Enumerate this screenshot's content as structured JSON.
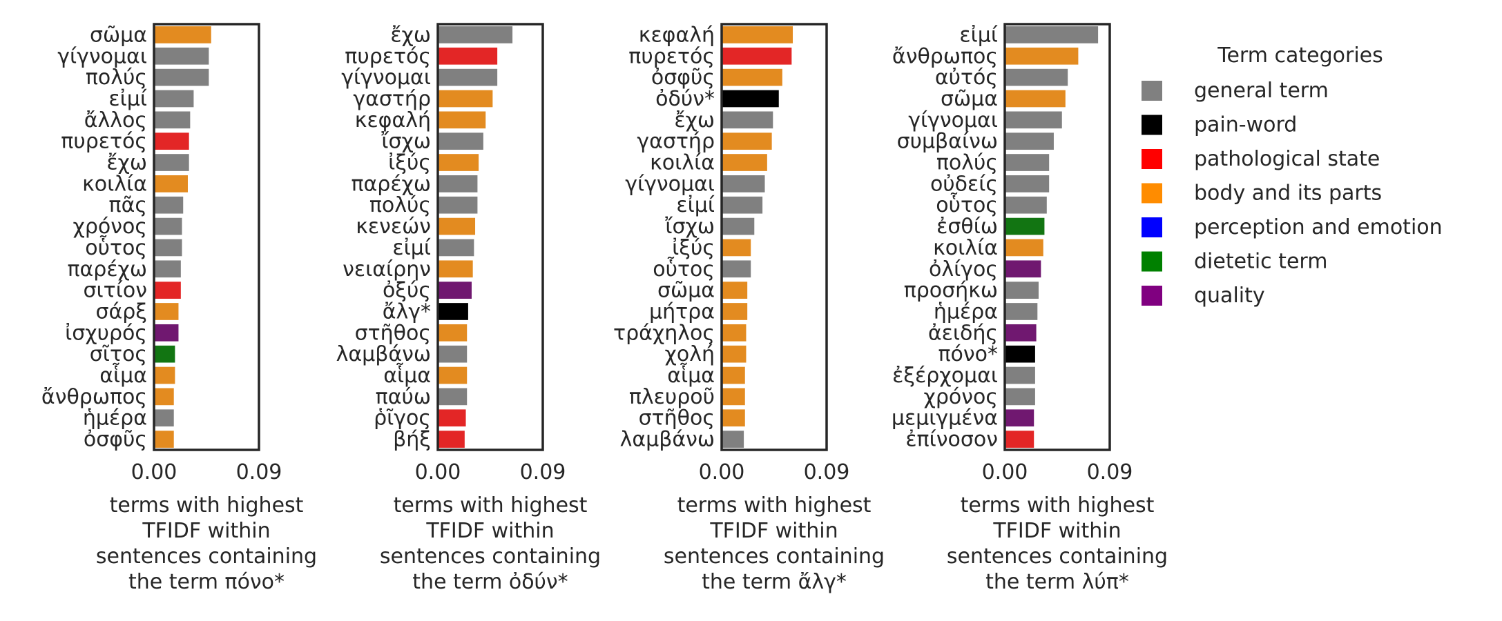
{
  "legend": {
    "title": "Term categories",
    "items": [
      {
        "label": "general term",
        "color": "#808080"
      },
      {
        "label": "pain-word",
        "color": "#000000"
      },
      {
        "label": "pathological state",
        "color": "#ff0000"
      },
      {
        "label": "body and its parts",
        "color": "#ff8c00"
      },
      {
        "label": "perception and emotion",
        "color": "#0000ff"
      },
      {
        "label": "dietetic term",
        "color": "#008000"
      },
      {
        "label": "quality",
        "color": "#800080"
      }
    ]
  },
  "bar_colors": {
    "general term": "#808080",
    "pain-word": "#000000",
    "pathological state": "#e32626",
    "body and its parts": "#e38b20",
    "perception and emotion": "#0000ff",
    "dietetic term": "#127512",
    "quality": "#701870"
  },
  "chart_data": [
    {
      "type": "bar",
      "orientation": "horizontal",
      "xlabel": "terms with highest\nTFIDF within\nsentences containing\nthe term πόνο*",
      "xlim": [
        0,
        0.09
      ],
      "xticks": [
        "0.00",
        "0.09"
      ],
      "categories": [
        "σῶμα",
        "γίγνομαι",
        "πολύς",
        "εἰμί",
        "ἄλλος",
        "πυρετός",
        "ἔχω",
        "κοιλία",
        "πᾶς",
        "χρόνος",
        "οὗτος",
        "παρέχω",
        "σιτίον",
        "σάρξ",
        "ἰσχυρός",
        "σῖτος",
        "αἷμα",
        "ἄνθρωπος",
        "ἡμέρα",
        "ὀσφῦς"
      ],
      "values": [
        0.049,
        0.047,
        0.047,
        0.034,
        0.031,
        0.03,
        0.03,
        0.029,
        0.025,
        0.024,
        0.024,
        0.023,
        0.023,
        0.021,
        0.021,
        0.018,
        0.018,
        0.017,
        0.017,
        0.017
      ],
      "term_categories": [
        "body and its parts",
        "general term",
        "general term",
        "general term",
        "general term",
        "pathological state",
        "general term",
        "body and its parts",
        "general term",
        "general term",
        "general term",
        "general term",
        "pathological state",
        "body and its parts",
        "quality",
        "dietetic term",
        "body and its parts",
        "body and its parts",
        "general term",
        "body and its parts"
      ]
    },
    {
      "type": "bar",
      "orientation": "horizontal",
      "xlabel": "terms with highest\nTFIDF within\nsentences containing\nthe term ὀδύν*",
      "xlim": [
        0,
        0.09
      ],
      "xticks": [
        "0.00",
        "0.09"
      ],
      "categories": [
        "ἔχω",
        "πυρετός",
        "γίγνομαι",
        "γαστήρ",
        "κεφαλή",
        "ἴσχω",
        "ἰξύς",
        "παρέχω",
        "πολύς",
        "κενεών",
        "εἰμί",
        "νειαίρην",
        "ὀξύς",
        "ἄλγ*",
        "στῆθος",
        "λαμβάνω",
        "αἷμα",
        "παύω",
        "ῥῖγος",
        "βήξ"
      ],
      "values": [
        0.064,
        0.051,
        0.051,
        0.047,
        0.041,
        0.039,
        0.035,
        0.034,
        0.034,
        0.032,
        0.031,
        0.03,
        0.029,
        0.026,
        0.025,
        0.025,
        0.025,
        0.025,
        0.024,
        0.023
      ],
      "term_categories": [
        "general term",
        "pathological state",
        "general term",
        "body and its parts",
        "body and its parts",
        "general term",
        "body and its parts",
        "general term",
        "general term",
        "body and its parts",
        "general term",
        "body and its parts",
        "quality",
        "pain-word",
        "body and its parts",
        "general term",
        "body and its parts",
        "general term",
        "pathological state",
        "pathological state"
      ]
    },
    {
      "type": "bar",
      "orientation": "horizontal",
      "xlabel": "terms with highest\nTFIDF within\nsentences containing\nthe term ἄλγ*",
      "xlim": [
        0,
        0.09
      ],
      "xticks": [
        "0.00",
        "0.09"
      ],
      "categories": [
        "κεφαλή",
        "πυρετός",
        "ὀσφῦς",
        "ὀδύν*",
        "ἔχω",
        "γαστήρ",
        "κοιλία",
        "γίγνομαι",
        "εἰμί",
        "ἴσχω",
        "ἰξύς",
        "οὗτος",
        "σῶμα",
        "μήτρα",
        "τράχηλος",
        "χολή",
        "αἷμα",
        "πλευροῦ",
        "στῆθος",
        "λαμβάνω"
      ],
      "values": [
        0.061,
        0.06,
        0.052,
        0.049,
        0.044,
        0.043,
        0.039,
        0.037,
        0.035,
        0.028,
        0.025,
        0.025,
        0.022,
        0.022,
        0.021,
        0.021,
        0.02,
        0.02,
        0.02,
        0.019
      ],
      "term_categories": [
        "body and its parts",
        "pathological state",
        "body and its parts",
        "pain-word",
        "general term",
        "body and its parts",
        "body and its parts",
        "general term",
        "general term",
        "general term",
        "body and its parts",
        "general term",
        "body and its parts",
        "body and its parts",
        "body and its parts",
        "body and its parts",
        "body and its parts",
        "body and its parts",
        "body and its parts",
        "general term"
      ]
    },
    {
      "type": "bar",
      "orientation": "horizontal",
      "xlabel": "terms with highest\nTFIDF within\nsentences containing\nthe term λύπ*",
      "xlim": [
        0,
        0.09
      ],
      "xticks": [
        "0.00",
        "0.09"
      ],
      "categories": [
        "εἰμί",
        "ἄνθρωπος",
        "αὐτός",
        "σῶμα",
        "γίγνομαι",
        "συμβαίνω",
        "πολύς",
        "οὐδείς",
        "οὗτος",
        "ἐσθίω",
        "κοιλία",
        "ὀλίγος",
        "προσήκω",
        "ἡμέρα",
        "ἀειδής",
        "πόνο*",
        "ἐξέρχομαι",
        "χρόνος",
        "μεμιγμένα",
        "ἐπίνοσον"
      ],
      "values": [
        0.08,
        0.063,
        0.054,
        0.052,
        0.049,
        0.042,
        0.038,
        0.038,
        0.036,
        0.034,
        0.033,
        0.031,
        0.029,
        0.028,
        0.027,
        0.026,
        0.026,
        0.026,
        0.025,
        0.025
      ],
      "term_categories": [
        "general term",
        "body and its parts",
        "general term",
        "body and its parts",
        "general term",
        "general term",
        "general term",
        "general term",
        "general term",
        "dietetic term",
        "body and its parts",
        "quality",
        "general term",
        "general term",
        "quality",
        "pain-word",
        "general term",
        "general term",
        "quality",
        "pathological state"
      ]
    }
  ]
}
